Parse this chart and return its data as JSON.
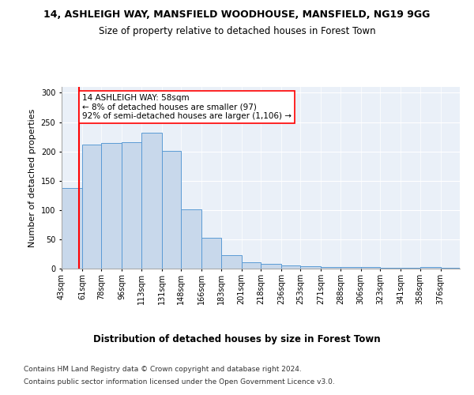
{
  "title1": "14, ASHLEIGH WAY, MANSFIELD WOODHOUSE, MANSFIELD, NG19 9GG",
  "title2": "Size of property relative to detached houses in Forest Town",
  "xlabel": "Distribution of detached houses by size in Forest Town",
  "ylabel": "Number of detached properties",
  "bar_color": "#c8d8eb",
  "bar_edge_color": "#5b9bd5",
  "bins": [
    43,
    61,
    78,
    96,
    113,
    131,
    148,
    166,
    183,
    201,
    218,
    236,
    253,
    271,
    288,
    306,
    323,
    341,
    358,
    376,
    393
  ],
  "values": [
    137,
    212,
    214,
    215,
    232,
    201,
    101,
    52,
    23,
    11,
    8,
    5,
    4,
    3,
    3,
    3,
    2,
    2,
    3,
    2
  ],
  "red_line_x": 58,
  "annotation_text": "14 ASHLEIGH WAY: 58sqm\n← 8% of detached houses are smaller (97)\n92% of semi-detached houses are larger (1,106) →",
  "annotation_box_color": "white",
  "annotation_box_edge": "red",
  "ylim": [
    0,
    310
  ],
  "yticks": [
    0,
    50,
    100,
    150,
    200,
    250,
    300
  ],
  "bg_color": "#eaf0f8",
  "footnote1": "Contains HM Land Registry data © Crown copyright and database right 2024.",
  "footnote2": "Contains public sector information licensed under the Open Government Licence v3.0.",
  "title1_fontsize": 9,
  "title2_fontsize": 8.5,
  "xlabel_fontsize": 8.5,
  "ylabel_fontsize": 8,
  "tick_fontsize": 7,
  "annotation_fontsize": 7.5,
  "footnote_fontsize": 6.5
}
